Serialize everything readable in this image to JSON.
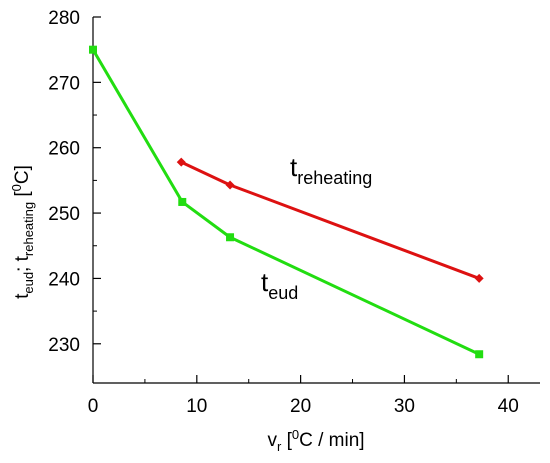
{
  "chart_data": {
    "type": "line",
    "xlim": [
      0,
      42
    ],
    "ylim": [
      224,
      280
    ],
    "x_ticks": [
      0,
      10,
      20,
      30,
      40
    ],
    "x_tick_labels": [
      "0",
      "10",
      "20",
      "30",
      "40"
    ],
    "y_ticks": [
      230,
      240,
      250,
      260,
      270,
      280
    ],
    "y_tick_labels": [
      "230",
      "240",
      "250",
      "260",
      "270",
      "280"
    ],
    "xlabel": {
      "main": "v",
      "sub": "r",
      "bracket_open": " [",
      "sup": "0",
      "rest": "C / min]"
    },
    "ylabel": {
      "t1": "t",
      "sub1": "eud",
      "sep": "; t",
      "sub2": "reheating",
      "bracket_open": " [",
      "sup": "0",
      "rest": "C]"
    },
    "grid": false,
    "series": [
      {
        "label_main": "t",
        "label_sub": "reheating",
        "color": "#dd1111",
        "x": [
          8.5,
          13.2,
          37.2
        ],
        "y": [
          257.8,
          254.3,
          240.0
        ]
      },
      {
        "label_main": "t",
        "label_sub": "eud",
        "color": "#22dd11",
        "x": [
          0,
          8.6,
          13.2,
          37.2
        ],
        "y": [
          275.0,
          251.7,
          246.3,
          228.4
        ]
      }
    ]
  }
}
